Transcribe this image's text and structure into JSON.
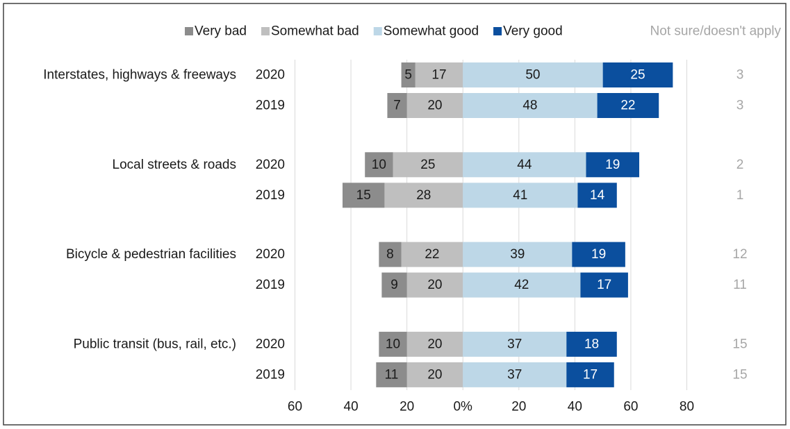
{
  "chart_data": {
    "type": "diverging-bar",
    "categories": [
      "2020",
      "2019",
      "2020",
      "2019",
      "2020",
      "2019",
      "2020",
      "2019"
    ],
    "group_labels": [
      "Interstates, highways & freeways",
      null,
      "Local streets & roads",
      null,
      "Bicycle & pedestrian facilities",
      null,
      "Public transit (bus, rail, etc.)",
      null
    ],
    "series": [
      {
        "name": "Very bad",
        "color": "#8c8c8c",
        "label_color": "#1a1a1a",
        "values": [
          -5,
          -7,
          -10,
          -15,
          -8,
          -9,
          -10,
          -11
        ],
        "value_labels": [
          "5",
          "7",
          "10",
          "15",
          "8",
          "9",
          "10",
          "11"
        ]
      },
      {
        "name": "Somewhat bad",
        "color": "#bfbfbf",
        "label_color": "#1a1a1a",
        "values": [
          -17,
          -20,
          -25,
          -28,
          -22,
          -20,
          -20,
          -20
        ],
        "value_labels": [
          "17",
          "20",
          "25",
          "28",
          "22",
          "20",
          "20",
          "20"
        ]
      },
      {
        "name": "Somewhat good",
        "color": "#bdd7e7",
        "label_color": "#1a1a1a",
        "values": [
          50,
          48,
          44,
          41,
          39,
          42,
          37,
          37
        ]
      },
      {
        "name": "Very good",
        "color": "#0b4f9e",
        "label_color": "#ffffff",
        "values": [
          25,
          22,
          19,
          14,
          19,
          17,
          18,
          17
        ]
      }
    ],
    "side_column": {
      "name": "Not sure/doesn't apply",
      "color": "#a6a6a6",
      "values": [
        3,
        3,
        2,
        1,
        12,
        11,
        15,
        15
      ]
    },
    "xlim": [
      -60,
      80
    ],
    "xticks": [
      {
        "value": -60,
        "label": "60"
      },
      {
        "value": -40,
        "label": "40"
      },
      {
        "value": -20,
        "label": "20"
      },
      {
        "value": 0,
        "label": "0%"
      },
      20,
      40,
      60,
      80
    ],
    "grid": true
  }
}
